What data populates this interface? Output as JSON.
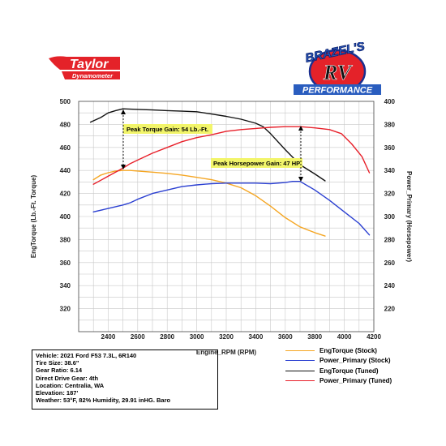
{
  "logos": {
    "taylor_main": "Taylor",
    "taylor_sub": "Dynamometer",
    "brazel_top": "BRAZEL'S",
    "brazel_mid": "RV",
    "brazel_bottom": "PERFORMANCE"
  },
  "colors": {
    "eng_torque_stock": "#f5a623",
    "power_primary_stock": "#2a3fd1",
    "eng_torque_tuned": "#111111",
    "power_primary_tuned": "#e8202a",
    "grid": "#c8c8c8",
    "callout_bg": "#f2f56a"
  },
  "chart_data": {
    "type": "line",
    "xlabel": "Engine_RPM (RPM)",
    "ylabel_left": "EngTorque (Lb.-Ft. Torque)",
    "ylabel_right": "Power_Primary (Horsepower)",
    "xlim": [
      2200,
      4200
    ],
    "ylim_left": [
      300,
      500
    ],
    "ylim_right": [
      200,
      400
    ],
    "x_ticks": [
      "2400",
      "2600",
      "2800",
      "3000",
      "3200",
      "3400",
      "3600",
      "3800",
      "4000",
      "4200"
    ],
    "y_ticks_left": [
      "320",
      "340",
      "360",
      "380",
      "400",
      "420",
      "440",
      "460",
      "480",
      "500"
    ],
    "y_ticks_right": [
      "220",
      "240",
      "260",
      "280",
      "300",
      "320",
      "340",
      "360",
      "380",
      "400"
    ],
    "grid": true,
    "legend_position": "bottom-right",
    "series": [
      {
        "name": "EngTorque (Stock)",
        "axis": "left",
        "x": [
          2300,
          2350,
          2400,
          2450,
          2500,
          2550,
          2600,
          2700,
          2800,
          2900,
          3000,
          3100,
          3200,
          3300,
          3400,
          3500,
          3600,
          3700,
          3800,
          3870
        ],
        "y": [
          432,
          436,
          438,
          439.5,
          440,
          440,
          439.5,
          438.5,
          437.5,
          436,
          434,
          432,
          429,
          425,
          418,
          409,
          399,
          391,
          386,
          383
        ]
      },
      {
        "name": "Power_Primary (Stock)",
        "axis": "right",
        "x": [
          2300,
          2400,
          2500,
          2550,
          2600,
          2700,
          2800,
          2900,
          3000,
          3100,
          3200,
          3300,
          3400,
          3500,
          3600,
          3650,
          3700,
          3800,
          3900,
          4000,
          4100,
          4170
        ],
        "y": [
          304,
          307,
          310,
          312,
          315,
          320,
          323,
          326,
          327.5,
          328.5,
          329,
          329,
          329,
          328.5,
          329.5,
          330.5,
          330.5,
          323,
          314,
          304,
          294,
          284
        ]
      },
      {
        "name": "EngTorque (Tuned)",
        "axis": "left",
        "x": [
          2280,
          2350,
          2400,
          2450,
          2500,
          2600,
          2700,
          2800,
          2900,
          3000,
          3100,
          3200,
          3300,
          3400,
          3450,
          3500,
          3600,
          3700,
          3800,
          3870
        ],
        "y": [
          482,
          486,
          490,
          492,
          493.5,
          493,
          492.5,
          492,
          491.5,
          491,
          489,
          487,
          484.5,
          481,
          478,
          472,
          458,
          445,
          437,
          431
        ]
      },
      {
        "name": "Power_Primary (Tuned)",
        "axis": "right",
        "x": [
          2300,
          2400,
          2500,
          2550,
          2600,
          2700,
          2800,
          2900,
          3000,
          3100,
          3200,
          3300,
          3400,
          3500,
          3600,
          3700,
          3800,
          3900,
          3980,
          4050,
          4120,
          4170
        ],
        "y": [
          328,
          335,
          342,
          346,
          349,
          355,
          360,
          365,
          368.5,
          371,
          374,
          375.5,
          376.5,
          377.5,
          378,
          378,
          377,
          375.5,
          372,
          363,
          352,
          338
        ]
      }
    ],
    "annotations": [
      {
        "text": "Peak Torque Gain: 54 Lb.-Ft."
      },
      {
        "text": "Peak Horsepower Gain: 47 HP"
      }
    ]
  },
  "info": [
    "Vehicle: 2021 Ford F53 7.3L, 6R140",
    "Tire Size: 38.6\"",
    "Gear Ratio: 6.14",
    "Direct Drive Gear: 4th",
    "Location: Centralia, WA",
    "Elevation: 187'",
    "Weather: 53°F, 82% Humidity, 29.91 inHG. Baro"
  ]
}
